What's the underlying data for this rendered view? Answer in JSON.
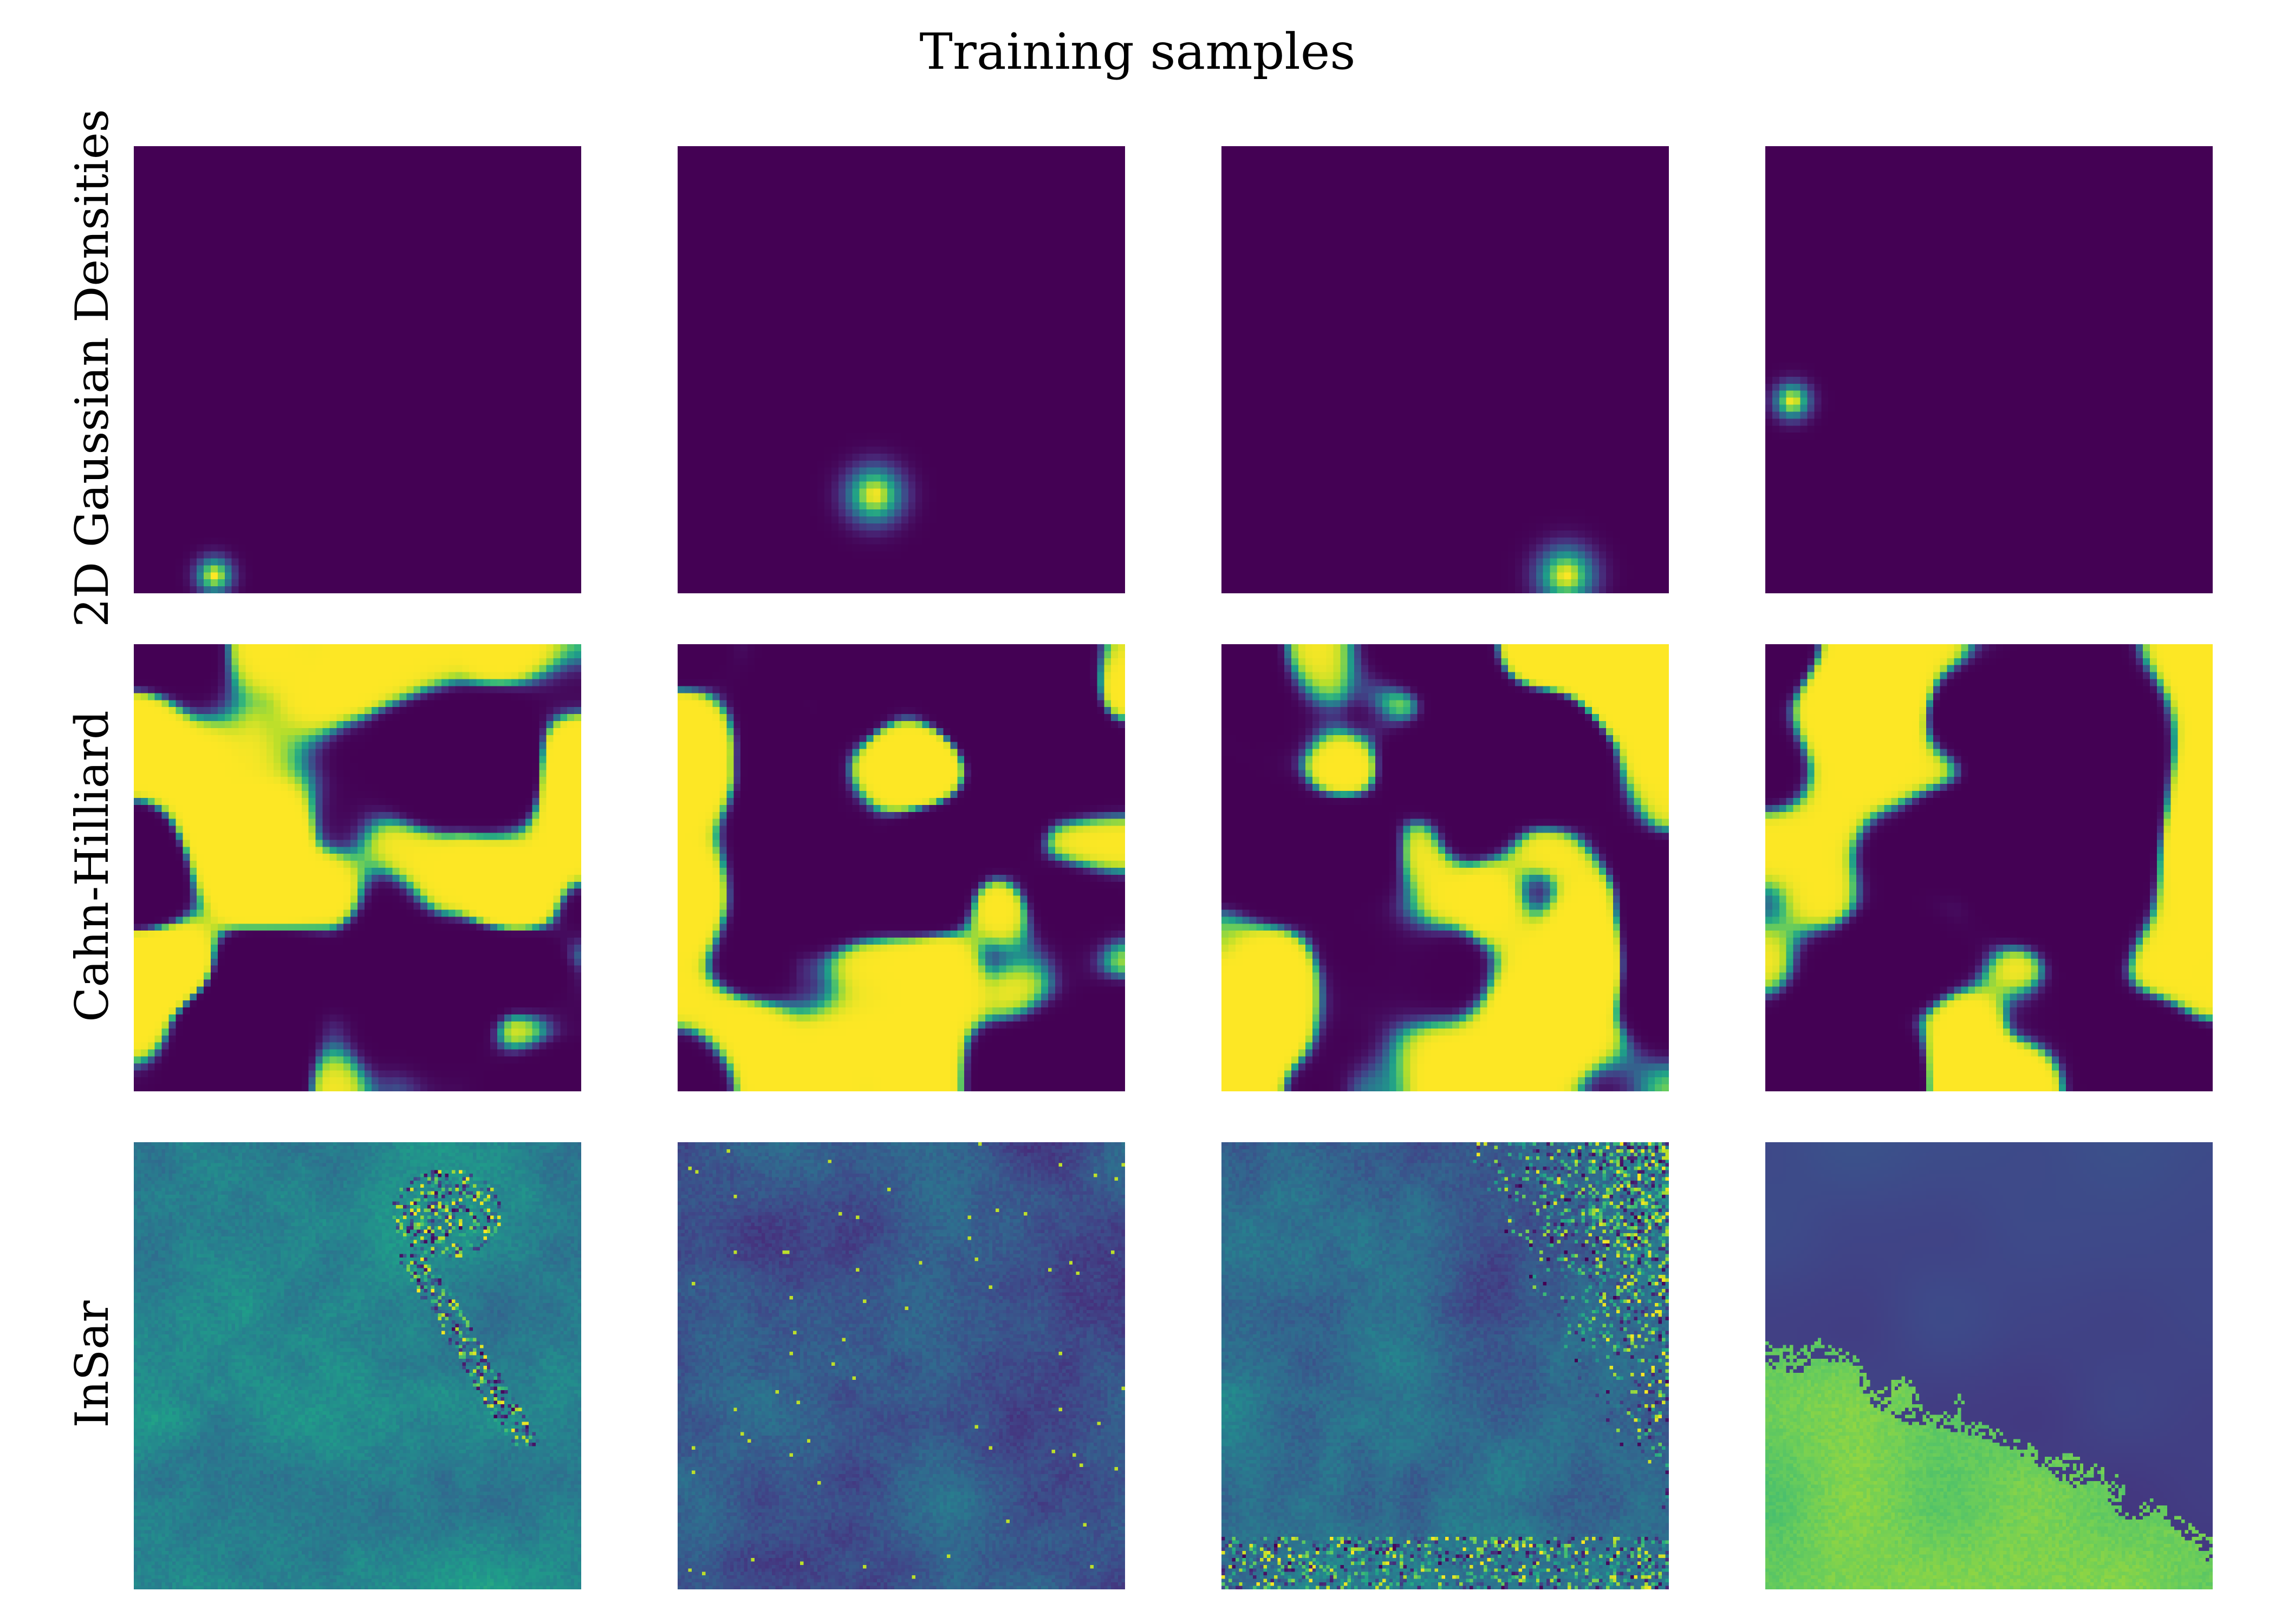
{
  "title": "Training samples",
  "rows": [
    {
      "label": "2D Gaussian Densities",
      "kind": "gaussian"
    },
    {
      "label": "Cahn-Hilliard",
      "kind": "cahn_hilliard"
    },
    {
      "label": "InSar",
      "kind": "insar"
    }
  ],
  "colormap": {
    "name": "viridis",
    "stops": [
      "#440154",
      "#482878",
      "#3e4989",
      "#31688e",
      "#26828e",
      "#1f9e89",
      "#35b779",
      "#6ece58",
      "#b5de2b",
      "#fde725"
    ]
  },
  "chart_data": {
    "type": "heatmap",
    "title": "Training samples",
    "layout": "3 rows x 4 columns of image panels",
    "axes_visible": false,
    "samples": {
      "gaussian": [
        {
          "center": [
            0.18,
            0.96
          ],
          "sigma": 0.025
        },
        {
          "center": [
            0.44,
            0.78
          ],
          "sigma": 0.04
        },
        {
          "center": [
            0.77,
            0.96
          ],
          "sigma": 0.04
        },
        {
          "center": [
            0.06,
            0.57
          ],
          "sigma": 0.025
        }
      ],
      "cahn_hilliard": [
        {
          "resolution": 64,
          "seed": 3
        },
        {
          "resolution": 64,
          "seed": 11
        },
        {
          "resolution": 64,
          "seed": 5
        },
        {
          "resolution": 64,
          "seed": 17
        }
      ],
      "insar": [
        {
          "resolution": 128,
          "base": 0.45,
          "variant": "plume"
        },
        {
          "resolution": 128,
          "base": 0.28,
          "variant": "dark"
        },
        {
          "resolution": 128,
          "base": 0.36,
          "variant": "corner-noise"
        },
        {
          "resolution": 128,
          "base": 0.22,
          "variant": "bright-lowerleft"
        }
      ]
    }
  }
}
